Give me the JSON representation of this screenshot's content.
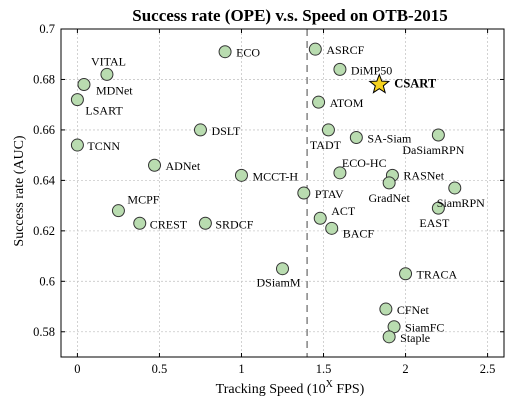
{
  "chart_data": {
    "type": "scatter",
    "title": "Success rate (OPE) v.s. Speed on OTB-2015",
    "xlabel_main": "Tracking Speed (10",
    "xlabel_sup": "X",
    "xlabel_end": " FPS)",
    "ylabel": "Success rate (AUC)",
    "xlim": [
      -0.1,
      2.6
    ],
    "ylim": [
      0.57,
      0.7
    ],
    "xticks": [
      0,
      0.5,
      1,
      1.5,
      2,
      2.5
    ],
    "xtick_labels": [
      "0",
      "0.5",
      "1",
      "1.5",
      "2",
      "2.5"
    ],
    "yticks": [
      0.58,
      0.6,
      0.62,
      0.64,
      0.66,
      0.68,
      0.7
    ],
    "ytick_labels": [
      "0.58",
      "0.6",
      "0.62",
      "0.64",
      "0.66",
      "0.68",
      "0.7"
    ],
    "grid": true,
    "reference_line_x": 1.4,
    "points": [
      {
        "name": "VITAL",
        "x": 0.18,
        "y": 0.682,
        "anchor": "start",
        "dx": -16,
        "dy": -9
      },
      {
        "name": "MDNet",
        "x": 0.04,
        "y": 0.678,
        "anchor": "start",
        "dx": 12,
        "dy": 10
      },
      {
        "name": "LSART",
        "x": 0.0,
        "y": 0.672,
        "anchor": "start",
        "dx": 8,
        "dy": 15
      },
      {
        "name": "TCNN",
        "x": 0.0,
        "y": 0.654,
        "anchor": "start",
        "dx": 10,
        "dy": 5
      },
      {
        "name": "ECO",
        "x": 0.9,
        "y": 0.691,
        "anchor": "start",
        "dx": 11,
        "dy": 5
      },
      {
        "name": "DSLT",
        "x": 0.75,
        "y": 0.66,
        "anchor": "start",
        "dx": 11,
        "dy": 5
      },
      {
        "name": "ADNet",
        "x": 0.47,
        "y": 0.646,
        "anchor": "start",
        "dx": 11,
        "dy": 5
      },
      {
        "name": "MCCT-H",
        "x": 1.0,
        "y": 0.642,
        "anchor": "start",
        "dx": 11,
        "dy": 5
      },
      {
        "name": "MCPF",
        "x": 0.25,
        "y": 0.628,
        "anchor": "start",
        "dx": 9,
        "dy": -7
      },
      {
        "name": "CREST",
        "x": 0.38,
        "y": 0.623,
        "anchor": "start",
        "dx": 10,
        "dy": 5
      },
      {
        "name": "SRDCF",
        "x": 0.78,
        "y": 0.623,
        "anchor": "start",
        "dx": 10,
        "dy": 5
      },
      {
        "name": "DSiamM",
        "x": 1.25,
        "y": 0.605,
        "anchor": "middle",
        "dx": -4,
        "dy": 18
      },
      {
        "name": "ASRCF",
        "x": 1.45,
        "y": 0.692,
        "anchor": "start",
        "dx": 11,
        "dy": 5
      },
      {
        "name": "DiMP50",
        "x": 1.6,
        "y": 0.684,
        "anchor": "start",
        "dx": 11,
        "dy": 5
      },
      {
        "name": "ATOM",
        "x": 1.47,
        "y": 0.671,
        "anchor": "start",
        "dx": 11,
        "dy": 5
      },
      {
        "name": "TADT",
        "x": 1.53,
        "y": 0.66,
        "anchor": "middle",
        "dx": -3,
        "dy": 19
      },
      {
        "name": "SA-Siam",
        "x": 1.7,
        "y": 0.657,
        "anchor": "start",
        "dx": 11,
        "dy": 5
      },
      {
        "name": "DaSiamRPN",
        "x": 2.2,
        "y": 0.658,
        "anchor": "middle",
        "dx": -5,
        "dy": 19
      },
      {
        "name": "ECO-HC",
        "x": 1.6,
        "y": 0.643,
        "anchor": "start",
        "dx": 2,
        "dy": -6
      },
      {
        "name": "RASNet",
        "x": 1.92,
        "y": 0.642,
        "anchor": "start",
        "dx": 11,
        "dy": 4
      },
      {
        "name": "GradNet",
        "x": 1.9,
        "y": 0.639,
        "anchor": "middle",
        "dx": 0,
        "dy": 19
      },
      {
        "name": "SiamRPN",
        "x": 2.3,
        "y": 0.637,
        "anchor": "middle",
        "dx": 6,
        "dy": 19
      },
      {
        "name": "PTAV",
        "x": 1.38,
        "y": 0.635,
        "anchor": "start",
        "dx": 11,
        "dy": 5
      },
      {
        "name": "EAST",
        "x": 2.2,
        "y": 0.629,
        "anchor": "middle",
        "dx": -4,
        "dy": 19
      },
      {
        "name": "ACT",
        "x": 1.48,
        "y": 0.625,
        "anchor": "start",
        "dx": 11,
        "dy": -3
      },
      {
        "name": "BACF",
        "x": 1.55,
        "y": 0.621,
        "anchor": "start",
        "dx": 11,
        "dy": 9
      },
      {
        "name": "TRACA",
        "x": 2.0,
        "y": 0.603,
        "anchor": "start",
        "dx": 11,
        "dy": 5
      },
      {
        "name": "CFNet",
        "x": 1.88,
        "y": 0.589,
        "anchor": "start",
        "dx": 11,
        "dy": 5
      },
      {
        "name": "SiamFC",
        "x": 1.93,
        "y": 0.582,
        "anchor": "start",
        "dx": 11,
        "dy": 5
      },
      {
        "name": "Staple",
        "x": 1.9,
        "y": 0.578,
        "anchor": "start",
        "dx": 11,
        "dy": 5
      },
      {
        "name": "CSART",
        "x": 1.84,
        "y": 0.678,
        "anchor": "start",
        "dx": 15,
        "dy": 3,
        "highlight": true
      }
    ],
    "colors": {
      "marker_fill": "#b9dcb0",
      "marker_edge": "#333333",
      "highlight_fill": "#f5d21f",
      "reference_line": "#8c8c8c"
    }
  }
}
